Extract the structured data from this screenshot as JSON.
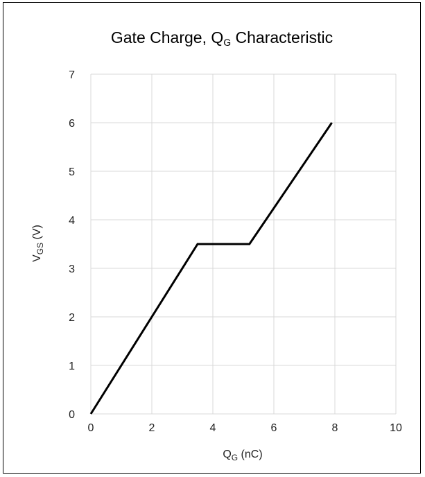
{
  "chart_data": {
    "type": "line",
    "title": {
      "main": "Gate Charge, Q",
      "sub": "G",
      "rest": " Characteristic"
    },
    "xlabel": {
      "main": "Q",
      "sub": "G",
      "rest": " (nC)"
    },
    "ylabel": {
      "main": "V",
      "sub": "GS",
      "rest": " (V)"
    },
    "xlim": [
      0,
      10
    ],
    "ylim": [
      0,
      7
    ],
    "xticks": [
      "0",
      "2",
      "4",
      "6",
      "8",
      "10"
    ],
    "yticks": [
      "0",
      "1",
      "2",
      "3",
      "4",
      "5",
      "6",
      "7"
    ],
    "grid": true,
    "series": [
      {
        "x": [
          0,
          3.5,
          5.2,
          7.9
        ],
        "y": [
          0,
          3.5,
          3.5,
          6.0
        ],
        "color": "#000000"
      }
    ]
  }
}
